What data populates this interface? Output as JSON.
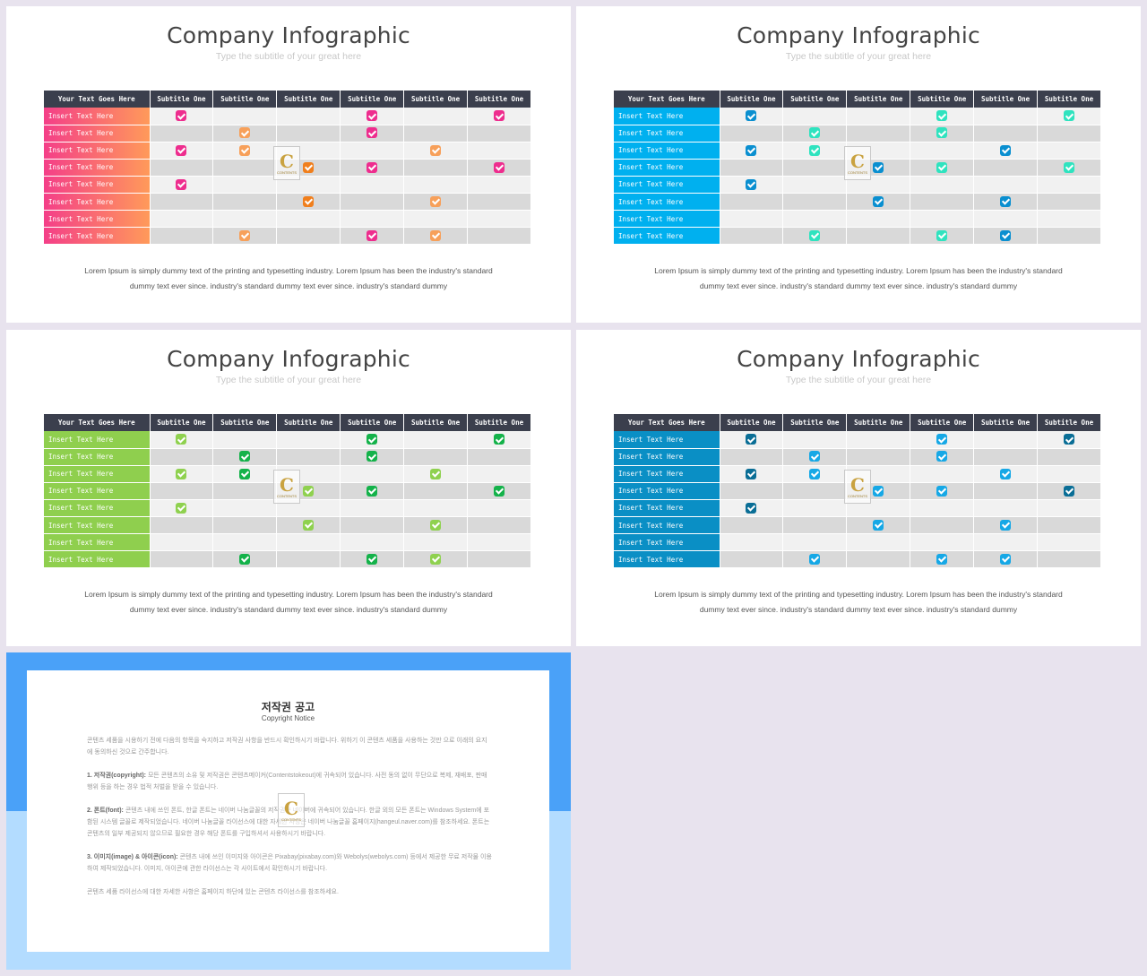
{
  "slides": [
    {
      "title": "Company Infographic",
      "subtitle": "Type the subtitle of your great here",
      "header_first": "Your Text Goes Here",
      "columns": [
        "Subtitle One",
        "Subtitle One",
        "Subtitle One",
        "Subtitle One",
        "Subtitle One",
        "Subtitle One"
      ],
      "row_label": "Insert Text Here",
      "rows": [
        [
          "pink",
          "",
          "",
          "pink",
          "",
          "pink"
        ],
        [
          "",
          "orange",
          "",
          "pink",
          "",
          ""
        ],
        [
          "pink",
          "orange",
          "",
          "",
          "orange",
          ""
        ],
        [
          "",
          "",
          "dorange",
          "pink",
          "",
          "pink"
        ],
        [
          "pink",
          "",
          "",
          "",
          "",
          ""
        ],
        [
          "",
          "",
          "dorange",
          "",
          "orange",
          ""
        ],
        [
          "",
          "",
          "",
          "",
          "",
          ""
        ],
        [
          "",
          "orange",
          "",
          "pink",
          "orange",
          ""
        ]
      ],
      "body_line1": "Lorem Ipsum is simply dummy text of the printing and typesetting industry.  Lorem Ipsum has been the industry's standard",
      "body_line2": "dummy text ever since. industry's standard dummy text ever since. industry's standard dummy"
    },
    {
      "title": "Company Infographic",
      "subtitle": "Type the subtitle of your great here",
      "header_first": "Your Text Goes Here",
      "columns": [
        "Subtitle One",
        "Subtitle One",
        "Subtitle One",
        "Subtitle One",
        "Subtitle One",
        "Subtitle One"
      ],
      "row_label": "Insert Text Here",
      "rows": [
        [
          "blue",
          "",
          "",
          "teal",
          "",
          "teal"
        ],
        [
          "",
          "teal",
          "",
          "teal",
          "",
          ""
        ],
        [
          "blue",
          "teal",
          "",
          "",
          "blue",
          ""
        ],
        [
          "",
          "",
          "blue",
          "teal",
          "",
          "teal"
        ],
        [
          "blue",
          "",
          "",
          "",
          "",
          ""
        ],
        [
          "",
          "",
          "blue",
          "",
          "blue",
          ""
        ],
        [
          "",
          "",
          "",
          "",
          "",
          ""
        ],
        [
          "",
          "teal",
          "",
          "teal",
          "blue",
          ""
        ]
      ],
      "body_line1": "Lorem Ipsum is simply dummy text of the printing and typesetting industry.  Lorem Ipsum has been the industry's standard",
      "body_line2": "dummy text ever since. industry's standard dummy text ever since. industry's standard dummy"
    },
    {
      "title": "Company Infographic",
      "subtitle": "Type the subtitle of your great here",
      "header_first": "Your Text Goes Here",
      "columns": [
        "Subtitle One",
        "Subtitle One",
        "Subtitle One",
        "Subtitle One",
        "Subtitle One",
        "Subtitle One"
      ],
      "row_label": "Insert Text Here",
      "rows": [
        [
          "lgreen",
          "",
          "",
          "green",
          "",
          "green"
        ],
        [
          "",
          "green",
          "",
          "green",
          "",
          ""
        ],
        [
          "lgreen",
          "green",
          "",
          "",
          "lgreen",
          ""
        ],
        [
          "",
          "",
          "lgreen",
          "green",
          "",
          "green"
        ],
        [
          "lgreen",
          "",
          "",
          "",
          "",
          ""
        ],
        [
          "",
          "",
          "lgreen",
          "",
          "lgreen",
          ""
        ],
        [
          "",
          "",
          "",
          "",
          "",
          ""
        ],
        [
          "",
          "green",
          "",
          "green",
          "lgreen",
          ""
        ]
      ],
      "body_line1": "Lorem Ipsum is simply dummy text of the printing and typesetting industry.  Lorem Ipsum has been the industry's standard",
      "body_line2": "dummy text ever since. industry's standard dummy text ever since. industry's standard dummy"
    },
    {
      "title": "Company Infographic",
      "subtitle": "Type the subtitle of your great here",
      "header_first": "Your Text Goes Here",
      "columns": [
        "Subtitle One",
        "Subtitle One",
        "Subtitle One",
        "Subtitle One",
        "Subtitle One",
        "Subtitle One"
      ],
      "row_label": "Insert Text Here",
      "rows": [
        [
          "dblue",
          "",
          "",
          "cyan",
          "",
          "dblue"
        ],
        [
          "",
          "cyan",
          "",
          "cyan",
          "",
          ""
        ],
        [
          "dblue",
          "cyan",
          "",
          "",
          "cyan",
          ""
        ],
        [
          "",
          "",
          "cyan",
          "cyan",
          "",
          "dblue"
        ],
        [
          "dblue",
          "",
          "",
          "",
          "",
          ""
        ],
        [
          "",
          "",
          "cyan",
          "",
          "cyan",
          ""
        ],
        [
          "",
          "",
          "",
          "",
          "",
          ""
        ],
        [
          "",
          "cyan",
          "",
          "cyan",
          "cyan",
          ""
        ]
      ],
      "body_line1": "Lorem Ipsum is simply dummy text of the printing and typesetting industry.  Lorem Ipsum has been the industry's standard",
      "body_line2": "dummy text ever since. industry's standard dummy text ever since. industry's standard dummy"
    }
  ],
  "watermark": {
    "letter": "C",
    "text": "CONTENTS"
  },
  "copyright": {
    "title": "저작권 공고",
    "subtitle": "Copyright Notice",
    "p0": "콘텐츠 세품을 시용하기 전에 다음의 항목을 숙지하고 저작권 사항을 반드시 확인하시기 바랍니다. 위하기 이 콘텐츠 세품을 사용하는 것만 으로 이래의 요지에 동의하신 것으로 간주합니다.",
    "p1_head": "1. 저작권(copyright):",
    "p1": "모든 콘텐츠의 소유 및 저작권은 콘텐츠메이커(Contentstokeout)에 귀속되어 있습니다. 사전 동의 없이 무단으로 복제, 재배포, 판매 행위 등을 하는 경우 법적 처벌을 받을 수 있습니다.",
    "p2_head": "2. 폰트(font):",
    "p2": "콘텐츠 내에 쓰인 폰트, 한글 폰트는 네이버 나눔글꼴의 저작권은 네이버에 귀속되어 있습니다. 한글 외의 모든 폰트는 Windows System에 포함된 시스템 글꼴로 제작되었습니다. 네이버 나눔글꼴 라이선스에 대한 자세한 사항은 네이버 나눔글꼴 홈페이지(hangeul.naver.com)를 참조하세요. 폰트는 콘텐츠의 일부 제공되지 않으므로 필요한 경우 해당 폰트를 구입하셔서 사용하시기 바랍니다.",
    "p3_head": "3. 이미지(image) & 아이콘(icon):",
    "p3": "콘텐츠 내에 쓰인 이미지와 아이콘은 Pixabay(pixabay.com)와 Webolys(webolys.com) 등에서 제공한 무료 저작물 이용하여 제작되었습니다. 이미지, 아이콘에 관한 라이선스는 각 사이트에서 확인하시기 바랍니다.",
    "p4": "콘텐츠 세품 라이선스에 대한 자세한 사항은 홈페이지 하단에 있는 콘텐츠 라이선스를 참조하세요."
  }
}
